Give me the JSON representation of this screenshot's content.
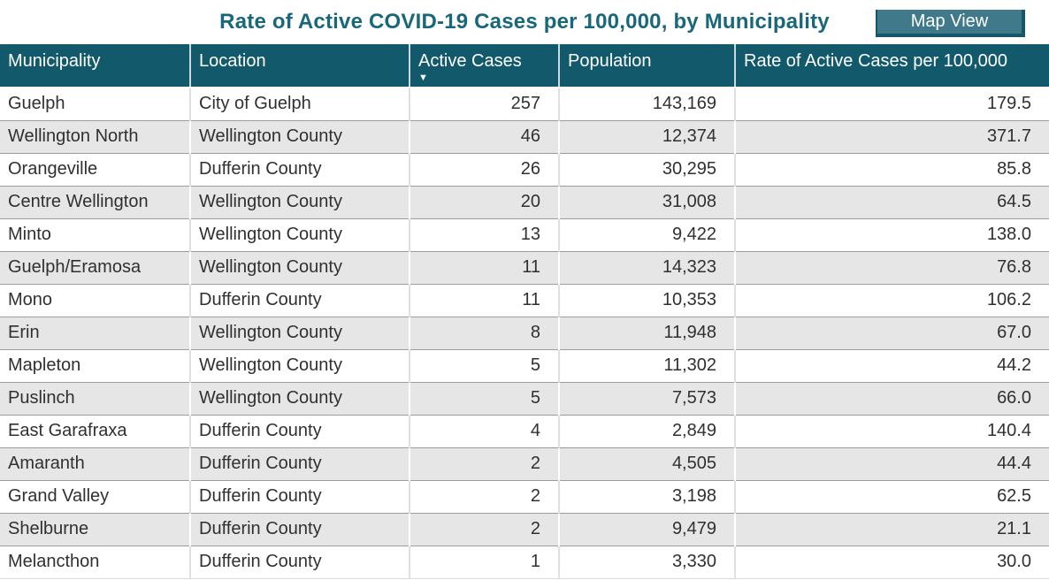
{
  "header": {
    "title": "Rate of Active COVID-19 Cases per 100,000, by Municipality",
    "button_label": "Map View"
  },
  "sort_indicator": {
    "icon_name": "sort-descending-icon",
    "glyph": "▼",
    "column": "Active Cases",
    "direction": "descending"
  },
  "colors": {
    "header_bg": "#11596B",
    "title_text": "#19677A",
    "button_bg": "#40798A",
    "button_border": "#14576A",
    "row_alt_bg": "#E6E6E6",
    "horizontal_gridline": "#9C9C9C",
    "body_text": "#303030"
  },
  "chart_data": {
    "type": "table",
    "title": "Rate of Active COVID-19 Cases per 100,000, by Municipality",
    "columns": [
      "Municipality",
      "Location",
      "Active Cases",
      "Population",
      "Rate of Active Cases per 100,000"
    ],
    "sorted_by": {
      "column": "Active Cases",
      "direction": "descending"
    },
    "rows": [
      [
        "Guelph",
        "City of Guelph",
        257,
        143169,
        179.5
      ],
      [
        "Wellington North",
        "Wellington County",
        46,
        12374,
        371.7
      ],
      [
        "Orangeville",
        "Dufferin County",
        26,
        30295,
        85.8
      ],
      [
        "Centre Wellington",
        "Wellington County",
        20,
        31008,
        64.5
      ],
      [
        "Minto",
        "Wellington County",
        13,
        9422,
        138.0
      ],
      [
        "Guelph/Eramosa",
        "Wellington County",
        11,
        14323,
        76.8
      ],
      [
        "Mono",
        "Dufferin County",
        11,
        10353,
        106.2
      ],
      [
        "Erin",
        "Wellington County",
        8,
        11948,
        67.0
      ],
      [
        "Mapleton",
        "Wellington County",
        5,
        11302,
        44.2
      ],
      [
        "Puslinch",
        "Wellington County",
        5,
        7573,
        66.0
      ],
      [
        "East Garafraxa",
        "Dufferin County",
        4,
        2849,
        140.4
      ],
      [
        "Amaranth",
        "Dufferin County",
        2,
        4505,
        44.4
      ],
      [
        "Grand Valley",
        "Dufferin County",
        2,
        3198,
        62.5
      ],
      [
        "Shelburne",
        "Dufferin County",
        2,
        9479,
        21.1
      ],
      [
        "Melancthon",
        "Dufferin County",
        1,
        3330,
        30.0
      ]
    ]
  }
}
